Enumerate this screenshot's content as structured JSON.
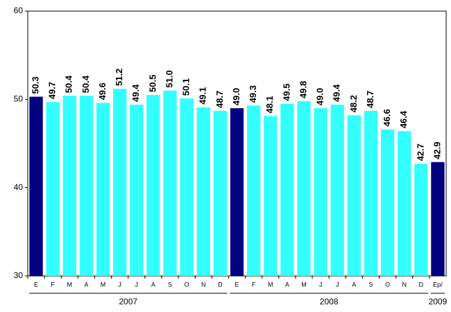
{
  "chart_data": {
    "type": "bar",
    "categories": [
      "E",
      "F",
      "M",
      "A",
      "M",
      "J",
      "J",
      "A",
      "S",
      "O",
      "N",
      "D",
      "E",
      "F",
      "M",
      "A",
      "M",
      "J",
      "J",
      "A",
      "S",
      "O",
      "N",
      "D",
      "Ep/"
    ],
    "values": [
      50.3,
      49.7,
      50.4,
      50.4,
      49.6,
      51.2,
      49.4,
      50.5,
      51.0,
      50.1,
      49.1,
      48.7,
      49.0,
      49.3,
      48.1,
      49.5,
      49.8,
      49.0,
      49.4,
      48.2,
      48.7,
      46.6,
      46.4,
      42.7,
      42.9
    ],
    "value_labels": [
      "50.3",
      "49.7",
      "50.4",
      "50.4",
      "49.6",
      "51.2",
      "49.4",
      "50.5",
      "51.0",
      "50.1",
      "49.1",
      "48.7",
      "49.0",
      "49.3",
      "48.1",
      "49.5",
      "49.8",
      "49.0",
      "49.4",
      "48.2",
      "48.7",
      "46.6",
      "46.4",
      "42.7",
      "42.9"
    ],
    "colors": [
      "#000080",
      "#33ffff",
      "#33ffff",
      "#33ffff",
      "#33ffff",
      "#33ffff",
      "#33ffff",
      "#33ffff",
      "#33ffff",
      "#33ffff",
      "#33ffff",
      "#33ffff",
      "#000080",
      "#33ffff",
      "#33ffff",
      "#33ffff",
      "#33ffff",
      "#33ffff",
      "#33ffff",
      "#33ffff",
      "#33ffff",
      "#33ffff",
      "#33ffff",
      "#33ffff",
      "#000080"
    ],
    "groups": [
      "2007",
      "2008",
      "2009"
    ],
    "ylim": [
      30,
      60
    ],
    "yticks": [
      30,
      40,
      50,
      60
    ],
    "grid": false
  }
}
